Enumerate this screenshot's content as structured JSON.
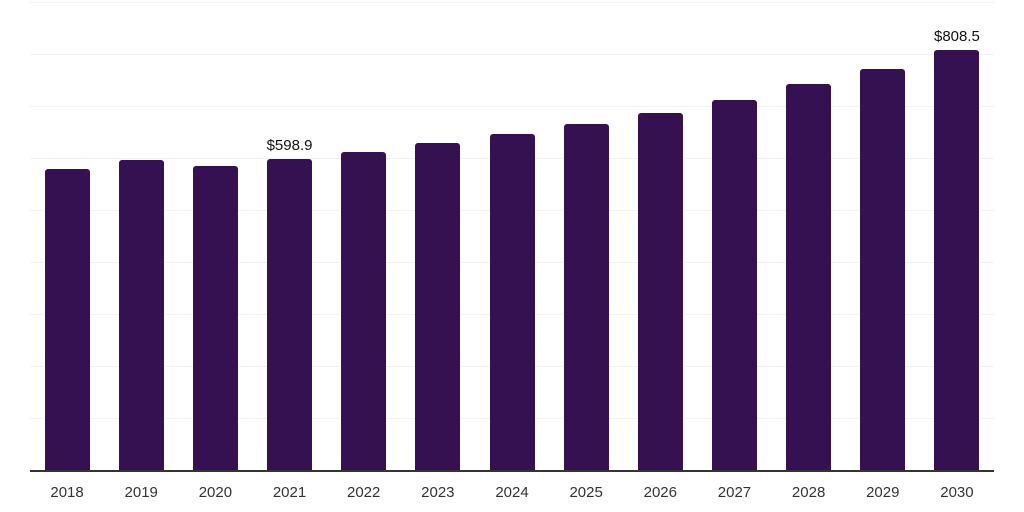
{
  "chart_data": {
    "type": "bar",
    "title": "",
    "xlabel": "",
    "ylabel": "",
    "categories": [
      "2018",
      "2019",
      "2020",
      "2021",
      "2022",
      "2023",
      "2024",
      "2025",
      "2026",
      "2027",
      "2028",
      "2029",
      "2030"
    ],
    "values": [
      579.3,
      596.5,
      585.2,
      598.9,
      612.2,
      628.0,
      646.3,
      666.0,
      687.0,
      710.9,
      742.8,
      772.0,
      808.5
    ],
    "data_labels": [
      "",
      "",
      "",
      "$598.9",
      "",
      "",
      "",
      "",
      "",
      "",
      "",
      "",
      "$808.5"
    ],
    "ylim": [
      0,
      900
    ],
    "grid_step": 100,
    "grid_visible": true,
    "y_tick_labels_visible": false,
    "legend_visible": false,
    "bar_color": "#351151",
    "grid_color": "#f2f2f2",
    "axis_color": "#333333",
    "tick_label_color": "#333333",
    "data_label_color": "#111111",
    "background_color": "#ffffff"
  }
}
